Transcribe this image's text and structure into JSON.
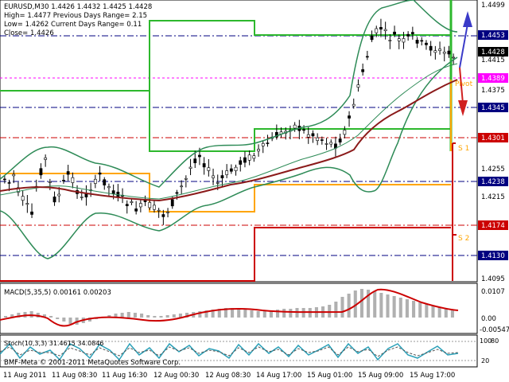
{
  "info": {
    "line1": "EURUSD,M30  1.4426 1.4432 1.4425 1.4428",
    "line2": "High= 1.4477    Previous Days Range= 2.15",
    "line3": "Low= 1.4262    Current Days Range= 0.11",
    "line4": "Close= 1.4426"
  },
  "price_axis": {
    "plain": [
      "1.4499",
      "1.4415",
      "1.4375",
      "1.4255",
      "1.4215",
      "1.4095"
    ],
    "boxed": [
      {
        "value": "1.4453",
        "color": "#000080"
      },
      {
        "value": "1.4428",
        "color": "#000000"
      },
      {
        "value": "1.4389",
        "color": "#ff00ff"
      },
      {
        "value": "1.4345",
        "color": "#000080"
      },
      {
        "value": "1.4301",
        "color": "#cc0000"
      },
      {
        "value": "1.4238",
        "color": "#000080"
      },
      {
        "value": "1.4174",
        "color": "#cc0000"
      },
      {
        "value": "1.4130",
        "color": "#000080"
      }
    ]
  },
  "pivot_labels": {
    "pivot": "Pivot",
    "s1": "S 1",
    "s2": "S 2"
  },
  "macd": {
    "label": "MACD(5,35,5) 0.00161 0.00203",
    "axis": [
      "0.0107",
      "0.00",
      "-0.00547"
    ]
  },
  "stoch": {
    "label": "Stoch(10,3,3) 31.4615 34.0846",
    "axis": [
      "100",
      "80",
      "20"
    ]
  },
  "copyright": "BMF-Meta  © 2001-2011 MetaQuotes Software Corp.",
  "time_axis": [
    "11 Aug 2011",
    "11 Aug 08:30",
    "11 Aug 16:30",
    "12 Aug 00:30",
    "12 Aug 08:30",
    "14 Aug 17:00",
    "15 Aug 01:00",
    "15 Aug 09:00",
    "15 Aug 17:00"
  ],
  "colors": {
    "bollinger": "#2e8b57",
    "ma": "#8b1a1a",
    "pivot_resist": "#2db82d",
    "pivot_orange": "#ffa500",
    "support": "#cc0000",
    "macd_line": "#cc0000",
    "macd_hist": "#b0b0b0",
    "stoch_main": "#2aa0b8",
    "arrow_up": "#3a3ac8",
    "arrow_down": "#d02020"
  }
}
